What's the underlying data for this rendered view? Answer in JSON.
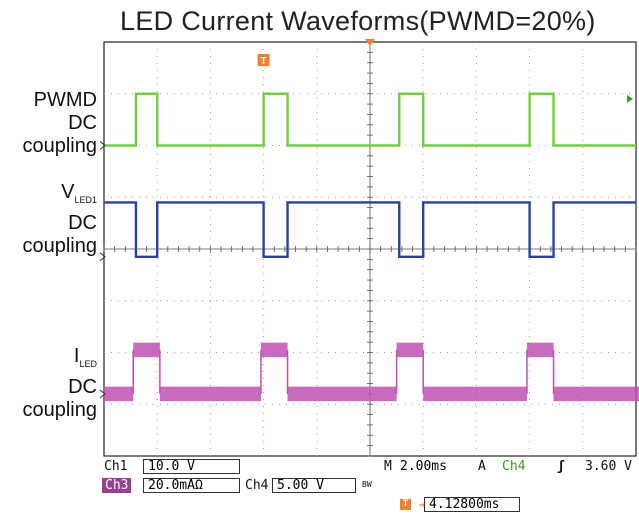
{
  "chart_data": {
    "type": "line",
    "title": "LED Current Waveforms(PWMD=20%)",
    "x_range_div": [
      0,
      10
    ],
    "y_range_div": [
      0,
      8
    ],
    "grid": true,
    "series": [
      {
        "name": "PWMD DC coupling",
        "color": "#6fcf3c",
        "base_level_div": 6.0,
        "high_level_div": 7.0,
        "pulses_div": [
          [
            0.95,
            1.95
          ],
          [
            5.85,
            6.85
          ]
        ],
        "pulses_b_div": [
          [
            3.45,
            4.45
          ],
          [
            8.3,
            9.3
          ]
        ]
      },
      {
        "name": "V LED1 DC coupling",
        "color": "#2a3fa8",
        "high_level_div": 4.9,
        "low_level_div": 3.85
      },
      {
        "name": "I LED DC coupling",
        "color": "#c050b0",
        "base_level_div": 1.2,
        "high_level_div": 2.05
      }
    ]
  },
  "labels": {
    "pwmd": [
      "PWMD",
      "DC",
      "coupling"
    ],
    "vled_main": "V",
    "vled_sub": "LED1",
    "vled_rest": [
      "DC",
      "coupling"
    ],
    "iled_main": "I",
    "iled_sub": "LED",
    "iled_rest": [
      "DC",
      "coupling"
    ]
  },
  "status": {
    "ch1_label": "Ch1",
    "ch1_value": "10.0 V",
    "ch3_label": "Ch3",
    "ch3_value": "20.0mAΩ",
    "ch4_label": "Ch4",
    "ch4_value": "5.00 V",
    "bw_mark": "BW",
    "timebase_label": "M",
    "timebase_value": "2.00ms",
    "trigger_mode": "A",
    "trigger_ch": "Ch4",
    "trigger_slope": "ʃ",
    "trigger_level": "3.60 V",
    "trigger_pos_value": "4.12800ms"
  },
  "colors": {
    "ch1": "#6fcf3c",
    "ch3": "#c050b0",
    "ch4": "#2a3fa8",
    "trigger": "#f08030"
  }
}
